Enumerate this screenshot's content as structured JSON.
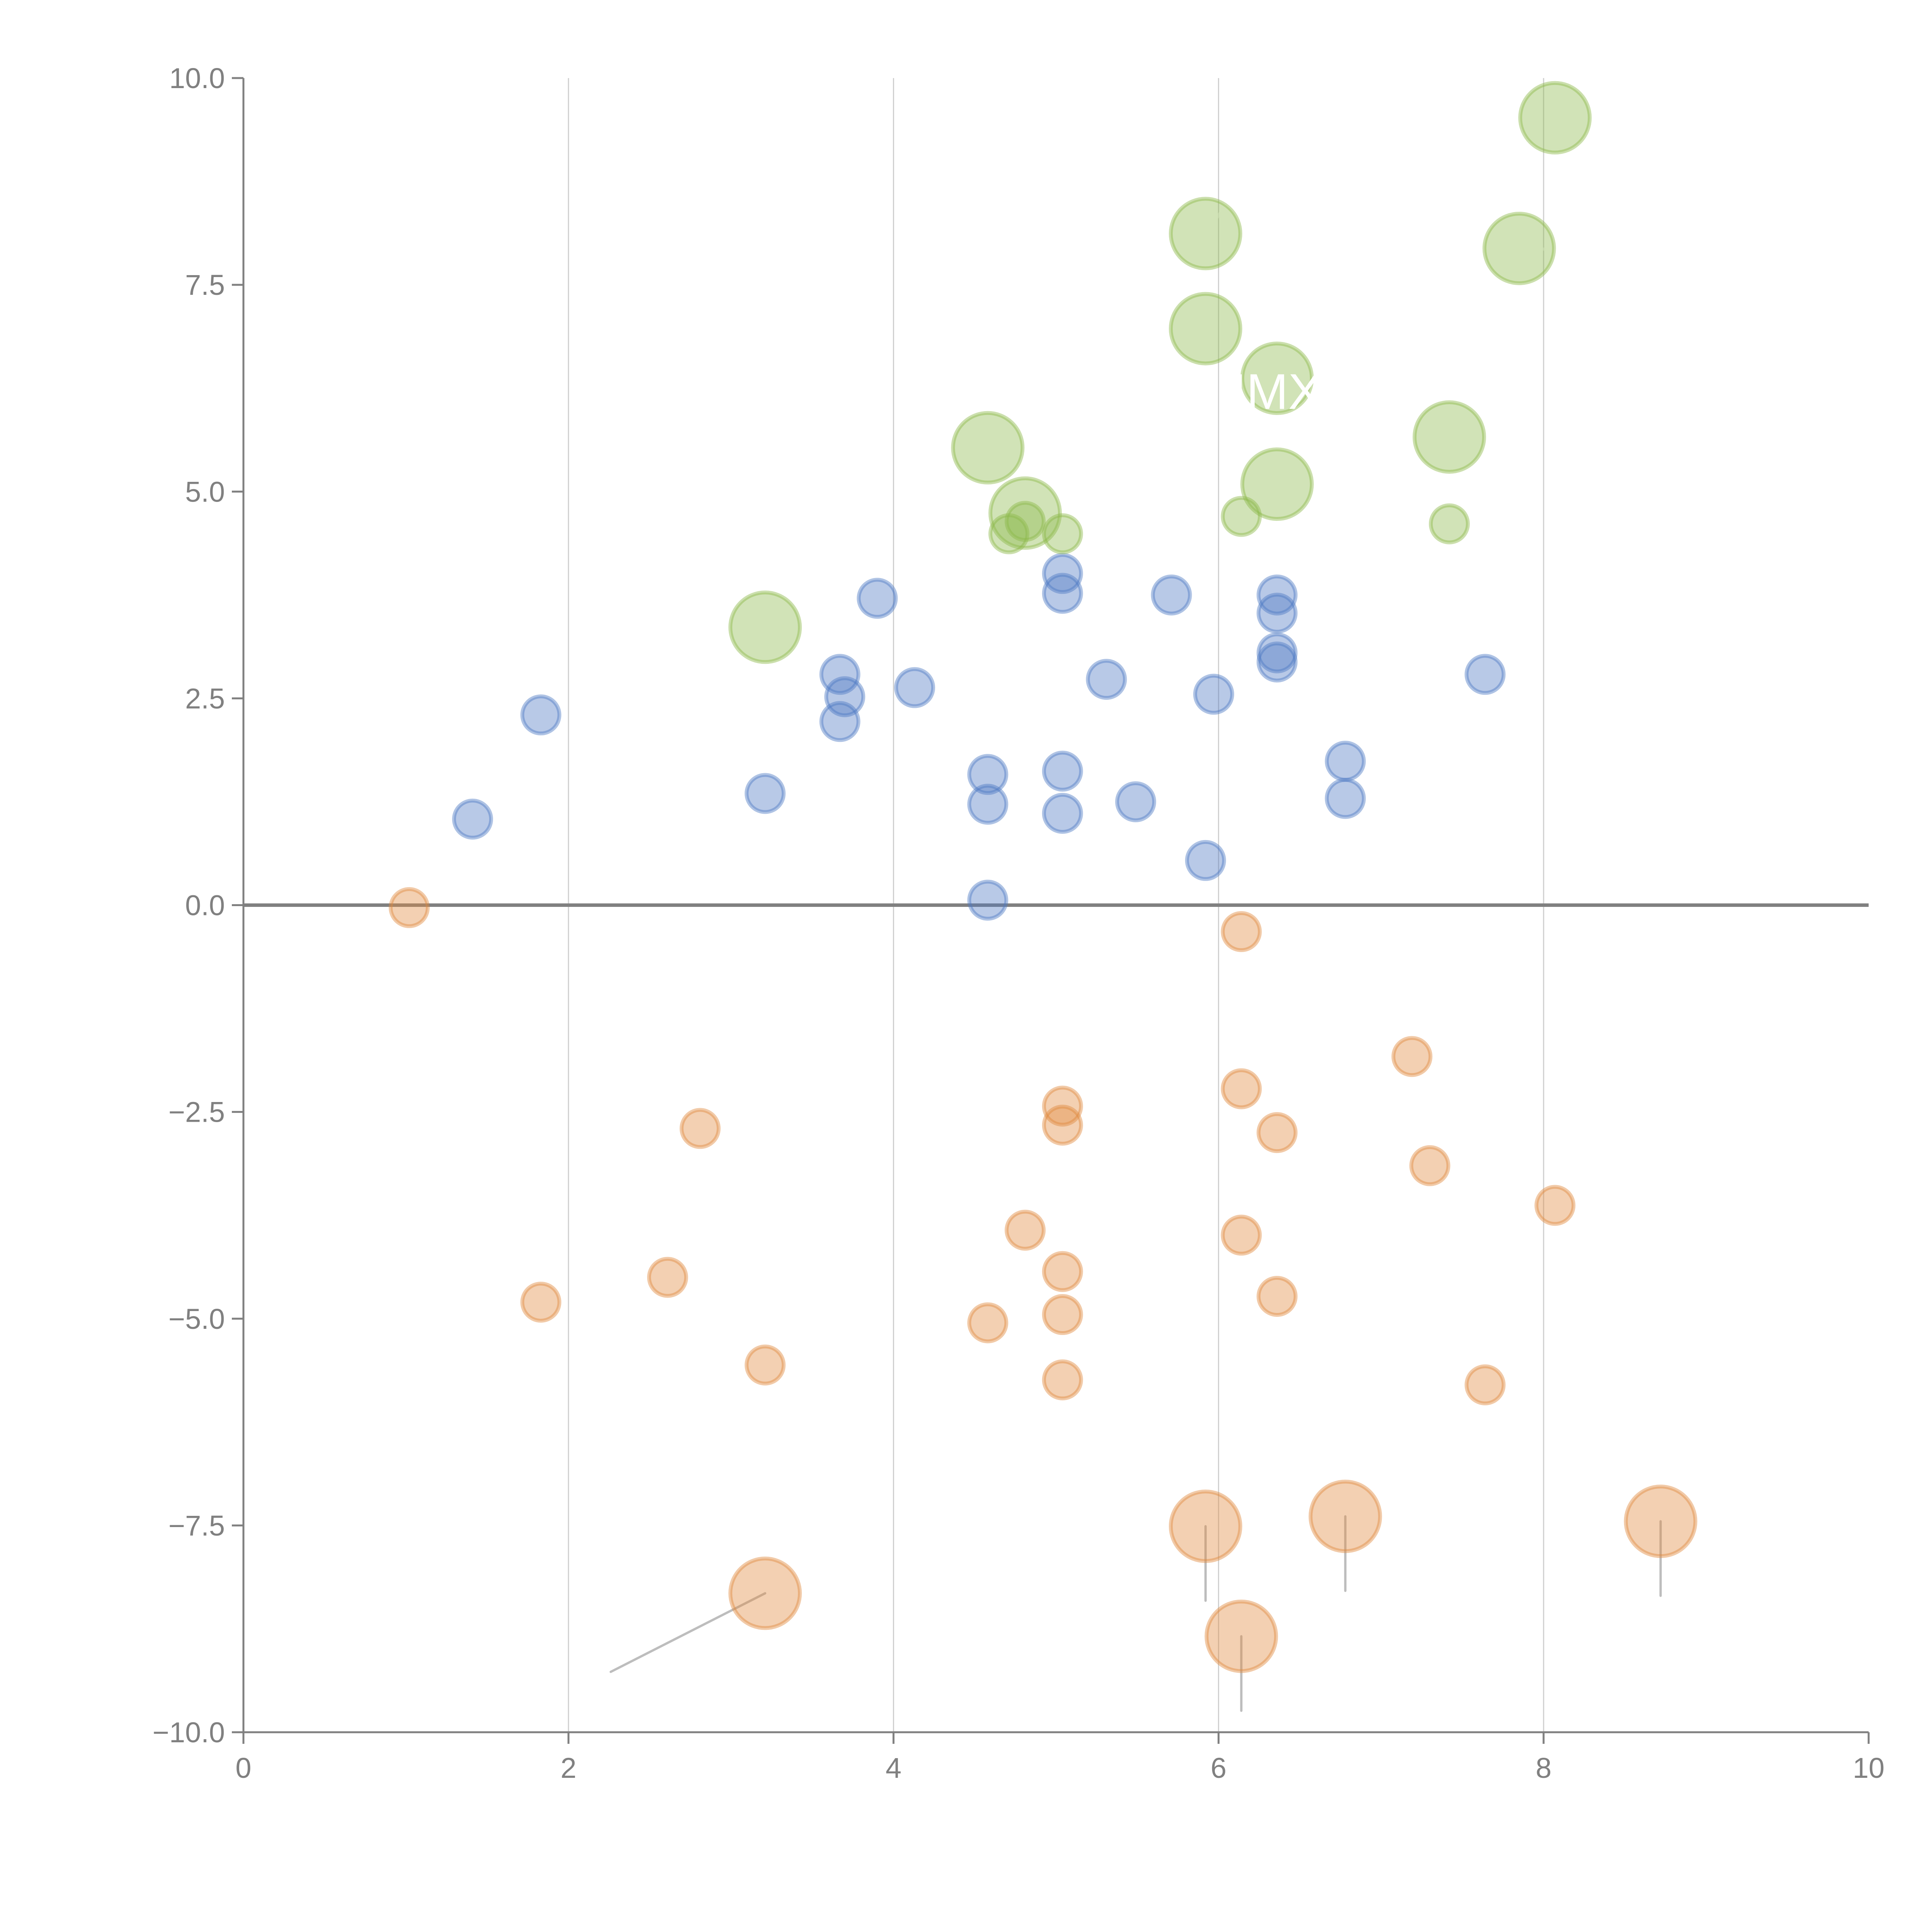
{
  "chart_data": {
    "type": "scatter",
    "title": "",
    "xlabel": "",
    "ylabel": "",
    "xlim": [
      0,
      10
    ],
    "ylim": [
      -10,
      10
    ],
    "x_ticks": [
      0,
      2,
      4,
      6,
      8,
      10
    ],
    "x_tick_labels": [
      "0",
      "2",
      "4",
      "6",
      "8",
      "10"
    ],
    "y_ticks": [
      10,
      7.5,
      5,
      2.5,
      0,
      -2.5,
      -5,
      -7.5,
      -10
    ],
    "y_tick_labels": [
      "10.0",
      "7.5",
      "5.0",
      "2.5",
      "0.0",
      "−2.5",
      "−5.0",
      "−7.5",
      "−10.0"
    ],
    "grid": "vertical",
    "zero_line": true,
    "legend": "none",
    "colors": {
      "blue": "#4e79c4",
      "green": "#8cb84a",
      "orange": "#e08a3f",
      "axis": "#808080"
    },
    "size_note": "two bubble sizes: small and large",
    "series": [
      {
        "name": "blue",
        "color_key": "blue",
        "points": [
          {
            "x": 1.41,
            "y": 1.04,
            "size": "small"
          },
          {
            "x": 1.83,
            "y": 2.3,
            "size": "small"
          },
          {
            "x": 3.21,
            "y": 1.35,
            "size": "small"
          },
          {
            "x": 3.67,
            "y": 2.79,
            "size": "small"
          },
          {
            "x": 3.7,
            "y": 2.52,
            "size": "small"
          },
          {
            "x": 3.67,
            "y": 2.22,
            "size": "small"
          },
          {
            "x": 3.9,
            "y": 3.71,
            "size": "small"
          },
          {
            "x": 4.13,
            "y": 2.63,
            "size": "small"
          },
          {
            "x": 4.58,
            "y": 1.58,
            "size": "small"
          },
          {
            "x": 4.58,
            "y": 1.22,
            "size": "small"
          },
          {
            "x": 4.58,
            "y": 0.06,
            "size": "small"
          },
          {
            "x": 5.04,
            "y": 4.01,
            "size": "small"
          },
          {
            "x": 5.04,
            "y": 3.77,
            "size": "small"
          },
          {
            "x": 5.04,
            "y": 1.62,
            "size": "small"
          },
          {
            "x": 5.04,
            "y": 1.11,
            "size": "small"
          },
          {
            "x": 5.31,
            "y": 2.73,
            "size": "small"
          },
          {
            "x": 5.49,
            "y": 1.25,
            "size": "small"
          },
          {
            "x": 5.71,
            "y": 3.75,
            "size": "small"
          },
          {
            "x": 5.92,
            "y": 0.54,
            "size": "small"
          },
          {
            "x": 5.97,
            "y": 2.55,
            "size": "small"
          },
          {
            "x": 6.36,
            "y": 3.75,
            "size": "small"
          },
          {
            "x": 6.36,
            "y": 3.53,
            "size": "small"
          },
          {
            "x": 6.36,
            "y": 3.05,
            "size": "small"
          },
          {
            "x": 6.36,
            "y": 2.94,
            "size": "small"
          },
          {
            "x": 6.78,
            "y": 1.74,
            "size": "small"
          },
          {
            "x": 6.78,
            "y": 1.29,
            "size": "small"
          },
          {
            "x": 7.64,
            "y": 2.79,
            "size": "small"
          }
        ]
      },
      {
        "name": "green",
        "color_key": "green",
        "points": [
          {
            "x": 3.21,
            "y": 3.36,
            "size": "large",
            "leader": [
              0.25,
              0.45
            ]
          },
          {
            "x": 4.58,
            "y": 5.53,
            "size": "large",
            "leader": [
              0.25,
              0.45
            ]
          },
          {
            "x": 4.81,
            "y": 4.74,
            "size": "large",
            "leader": [
              0.35,
              -1.0
            ]
          },
          {
            "x": 4.71,
            "y": 4.49,
            "size": "small"
          },
          {
            "x": 4.81,
            "y": 4.64,
            "size": "small"
          },
          {
            "x": 5.04,
            "y": 4.49,
            "size": "small"
          },
          {
            "x": 5.92,
            "y": 8.12,
            "size": "large",
            "leader": [
              0.2,
              0.55
            ]
          },
          {
            "x": 5.92,
            "y": 6.97,
            "size": "large",
            "leader": [
              -0.1,
              -0.45
            ]
          },
          {
            "x": 6.36,
            "y": 6.37,
            "size": "large",
            "leader": [
              0.25,
              0.45
            ]
          },
          {
            "x": 6.36,
            "y": 5.09,
            "size": "large",
            "leader": [
              0.08,
              0.55
            ]
          },
          {
            "x": 6.14,
            "y": 4.7,
            "size": "small"
          },
          {
            "x": 7.42,
            "y": 5.66,
            "size": "large",
            "leader": [
              0.25,
              -0.35
            ]
          },
          {
            "x": 7.42,
            "y": 4.61,
            "size": "small"
          },
          {
            "x": 7.85,
            "y": 7.94,
            "size": "large",
            "leader": [
              0.4,
              -0.02
            ]
          },
          {
            "x": 8.07,
            "y": 9.52,
            "size": "large",
            "leader": [
              0.3,
              0.12
            ]
          }
        ]
      },
      {
        "name": "orange",
        "color_key": "orange",
        "points": [
          {
            "x": 1.02,
            "y": -0.03,
            "size": "small"
          },
          {
            "x": 1.83,
            "y": -4.8,
            "size": "small"
          },
          {
            "x": 2.61,
            "y": -4.5,
            "size": "small"
          },
          {
            "x": 2.81,
            "y": -2.7,
            "size": "small"
          },
          {
            "x": 3.21,
            "y": -5.56,
            "size": "small"
          },
          {
            "x": 3.21,
            "y": -8.32,
            "size": "large",
            "leader": [
              -0.95,
              -0.95
            ]
          },
          {
            "x": 4.58,
            "y": -5.05,
            "size": "small"
          },
          {
            "x": 4.81,
            "y": -3.93,
            "size": "small"
          },
          {
            "x": 5.04,
            "y": -2.43,
            "size": "small"
          },
          {
            "x": 5.04,
            "y": -2.66,
            "size": "small"
          },
          {
            "x": 5.04,
            "y": -4.43,
            "size": "small"
          },
          {
            "x": 5.04,
            "y": -4.95,
            "size": "small"
          },
          {
            "x": 5.04,
            "y": -5.74,
            "size": "small"
          },
          {
            "x": 5.92,
            "y": -7.51,
            "size": "large",
            "leader": [
              0,
              -0.9
            ]
          },
          {
            "x": 6.14,
            "y": -0.32,
            "size": "small"
          },
          {
            "x": 6.14,
            "y": -2.22,
            "size": "small"
          },
          {
            "x": 6.14,
            "y": -3.99,
            "size": "small"
          },
          {
            "x": 6.14,
            "y": -8.84,
            "size": "large",
            "leader": [
              0,
              -0.9
            ]
          },
          {
            "x": 6.36,
            "y": -2.75,
            "size": "small"
          },
          {
            "x": 6.36,
            "y": -4.73,
            "size": "small"
          },
          {
            "x": 6.78,
            "y": -7.39,
            "size": "large",
            "leader": [
              0,
              -0.9
            ]
          },
          {
            "x": 7.19,
            "y": -1.83,
            "size": "small"
          },
          {
            "x": 7.3,
            "y": -3.15,
            "size": "small"
          },
          {
            "x": 7.64,
            "y": -5.8,
            "size": "small"
          },
          {
            "x": 8.07,
            "y": -3.63,
            "size": "small"
          },
          {
            "x": 8.72,
            "y": -7.45,
            "size": "large",
            "leader": [
              0,
              -0.9
            ]
          }
        ]
      }
    ],
    "annotations": [
      {
        "text": "IMX",
        "x": 6.36,
        "y": 6.0,
        "color": "#ffffff"
      }
    ]
  }
}
